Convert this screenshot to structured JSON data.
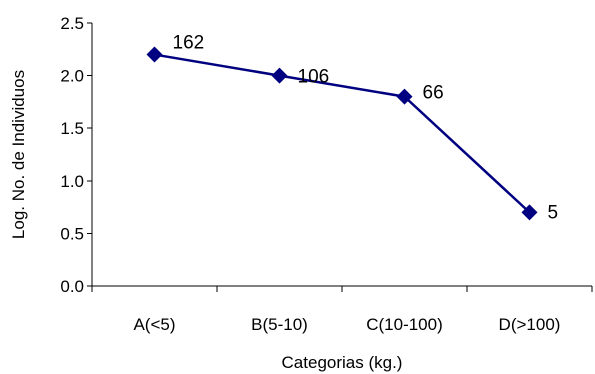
{
  "chart_data": {
    "type": "line",
    "xlabel": "Categorias (kg.)",
    "ylabel": "Log. No. de Individuos",
    "categories": [
      "A(<5)",
      "B(5-10)",
      "C(10-100)",
      "D(>100)"
    ],
    "series": [
      {
        "values": [
          2.2,
          2.0,
          1.8,
          0.7
        ],
        "data_labels": [
          "162",
          "106",
          "66",
          "5"
        ],
        "color": "#000080",
        "marker": "diamond"
      }
    ],
    "ylim": [
      0,
      2.5
    ],
    "yticks": [
      "0.0",
      "0.5",
      "1.0",
      "1.5",
      "2.0",
      "2.5"
    ],
    "grid": false,
    "legend": "none"
  }
}
